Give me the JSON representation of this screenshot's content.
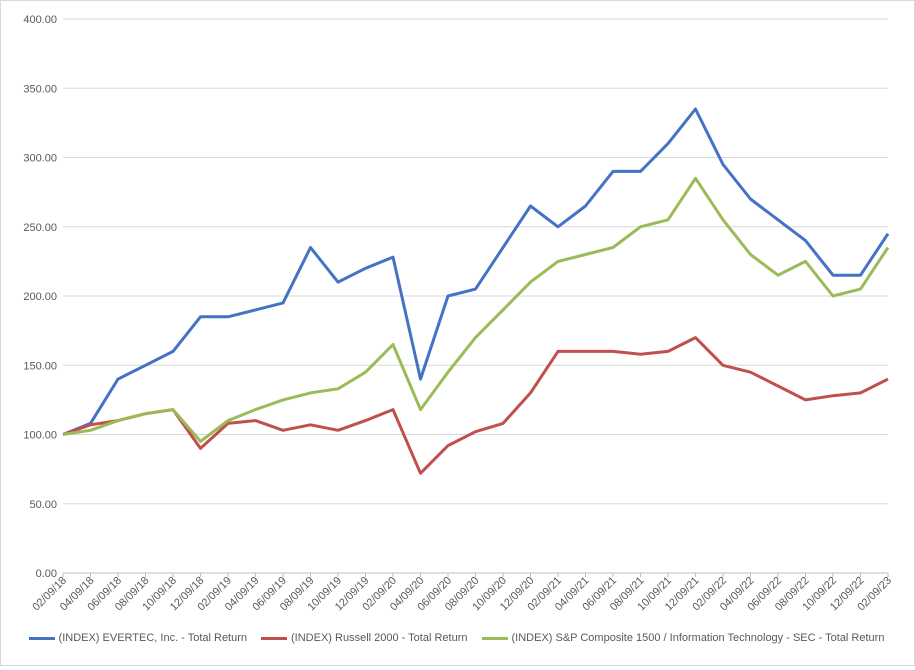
{
  "chart_data": {
    "type": "line",
    "title": "",
    "xlabel": "",
    "ylabel": "",
    "ylim": [
      0,
      400
    ],
    "yticks": [
      "0.00",
      "50.00",
      "100.00",
      "150.00",
      "200.00",
      "250.00",
      "300.00",
      "350.00",
      "400.00"
    ],
    "x": [
      "02/09/18",
      "04/09/18",
      "06/09/18",
      "08/09/18",
      "10/09/18",
      "12/09/18",
      "02/09/19",
      "04/09/19",
      "06/09/19",
      "08/09/19",
      "10/09/19",
      "12/09/19",
      "02/09/20",
      "04/09/20",
      "06/09/20",
      "08/09/20",
      "10/09/20",
      "12/09/20",
      "02/09/21",
      "04/09/21",
      "06/09/21",
      "08/09/21",
      "10/09/21",
      "12/09/21",
      "02/09/22",
      "04/09/22",
      "06/09/22",
      "08/09/22",
      "10/09/22",
      "12/09/22",
      "02/09/23"
    ],
    "grid": true,
    "legend_position": "bottom",
    "series": [
      {
        "name": "(INDEX) EVERTEC, Inc. - Total Return",
        "color": "#4472c4",
        "values": [
          100,
          108,
          140,
          150,
          160,
          185,
          185,
          190,
          195,
          235,
          210,
          220,
          228,
          140,
          200,
          205,
          235,
          265,
          250,
          265,
          290,
          290,
          310,
          335,
          295,
          270,
          255,
          240,
          215,
          215,
          245
        ]
      },
      {
        "name": "(INDEX) Russell 2000 - Total Return",
        "color": "#c0504d",
        "values": [
          100,
          107,
          110,
          115,
          118,
          90,
          108,
          110,
          103,
          107,
          103,
          110,
          118,
          72,
          92,
          102,
          108,
          130,
          160,
          160,
          160,
          158,
          160,
          170,
          150,
          145,
          135,
          125,
          128,
          130,
          140
        ]
      },
      {
        "name": "(INDEX) S&P Composite 1500 / Information Technology - SEC - Total Return",
        "color": "#9bbb59",
        "values": [
          100,
          103,
          110,
          115,
          118,
          95,
          110,
          118,
          125,
          130,
          133,
          145,
          165,
          118,
          145,
          170,
          190,
          210,
          225,
          230,
          235,
          250,
          255,
          285,
          255,
          230,
          215,
          225,
          200,
          205,
          235
        ]
      }
    ]
  }
}
